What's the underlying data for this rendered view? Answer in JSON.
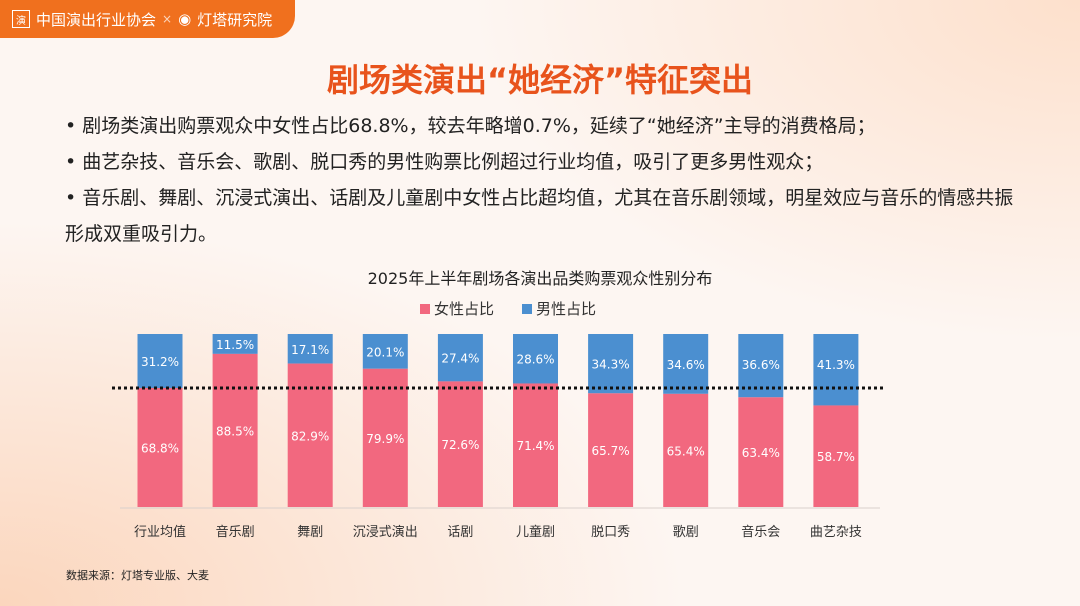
{
  "header": {
    "logo_left": "中国演出行业协会",
    "separator": "×",
    "logo_right": "灯塔研究院",
    "seal_char": "演"
  },
  "title": "剧场类演出“她经济”特征突出",
  "bullets": [
    "• 剧场类演出购票观众中女性占比68.8%，较去年略增0.7%，延续了“她经济”主导的消费格局；",
    "• 曲艺杂技、音乐会、歌剧、脱口秀的男性购票比例超过行业均值，吸引了更多男性观众；",
    "• 音乐剧、舞剧、沉浸式演出、话剧及儿童剧中女性占比超均值，尤其在音乐剧领域，明星效应与音乐的情感共振形成双重吸引力。"
  ],
  "source": "数据来源：灯塔专业版、大麦",
  "colors": {
    "female": "#f2687f",
    "male": "#4b8fd0"
  },
  "chart_data": {
    "type": "bar",
    "stacked": true,
    "title": "2025年上半年剧场各演出品类购票观众性别分布",
    "categories": [
      "行业均值",
      "音乐剧",
      "舞剧",
      "沉浸式演出",
      "话剧",
      "儿童剧",
      "脱口秀",
      "歌剧",
      "音乐会",
      "曲艺杂技"
    ],
    "series": [
      {
        "name": "女性占比",
        "values": [
          68.8,
          88.5,
          82.9,
          79.9,
          72.6,
          71.4,
          65.7,
          65.4,
          63.4,
          58.7
        ]
      },
      {
        "name": "男性占比",
        "values": [
          31.2,
          11.5,
          17.1,
          20.1,
          27.4,
          28.6,
          34.3,
          34.6,
          36.6,
          41.3
        ]
      }
    ],
    "reference_line": 68.8,
    "ylim": [
      0,
      100
    ],
    "legend": "top-center"
  }
}
